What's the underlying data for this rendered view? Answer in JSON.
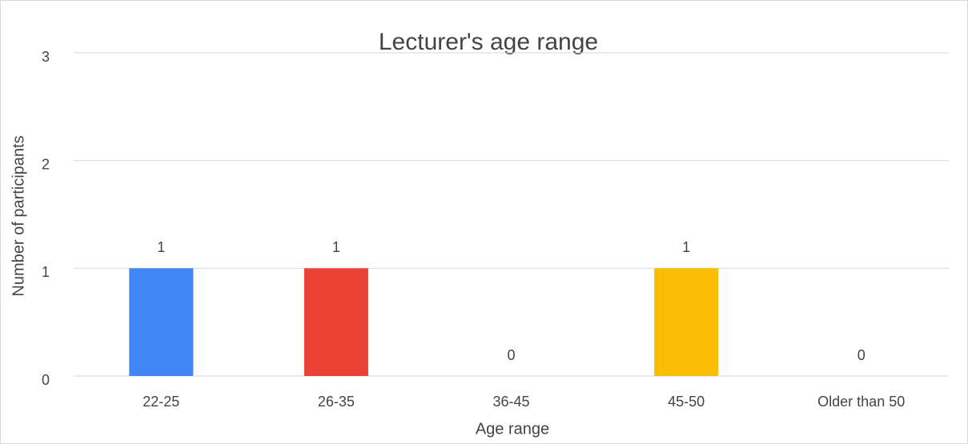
{
  "chart_data": {
    "type": "bar",
    "title": "Lecturer's age range",
    "x_label": "Age range",
    "y_label": "Number of participants",
    "categories": [
      "22-25",
      "26-35",
      "36-45",
      "45-50",
      "Older than 50"
    ],
    "values": [
      1,
      1,
      0,
      1,
      0
    ],
    "colors": [
      "#4285f4",
      "#ea4335",
      "#34a853",
      "#fbbc04",
      "#46bdc6"
    ],
    "ylim": [
      0,
      3
    ],
    "yticks": [
      0,
      1,
      2,
      3
    ],
    "grid": true
  }
}
